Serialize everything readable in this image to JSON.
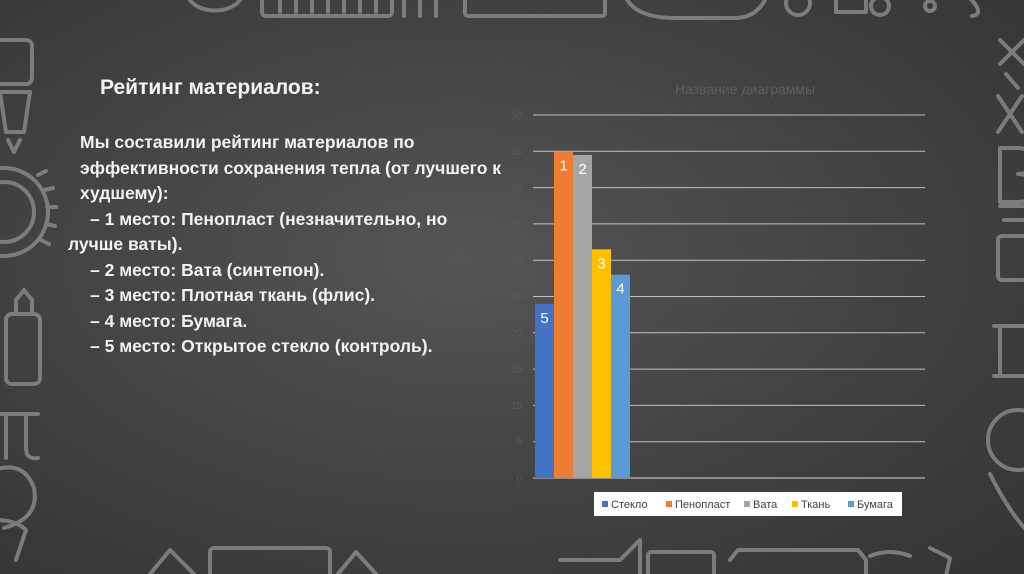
{
  "slide": {
    "heading": "Рейтинг материалов:",
    "intro": "Мы составили рейтинг материалов по эффективности сохранения тепла (от лучшего к худшему):",
    "items": [
      {
        "first": "– 1 место: Пенопласт (незначительно, но",
        "cont": "лучше ваты)."
      },
      {
        "first": "– 2 место: Вата (синтепон)."
      },
      {
        "first": "– 3 место: Плотная ткань (флис)."
      },
      {
        "first": "– 4 место: Бумага."
      },
      {
        "first": "– 5 место: Открытое стекло (контроль)."
      }
    ]
  },
  "chart_data": {
    "type": "bar",
    "title": "Название диаграммы",
    "ylim": [
      0,
      50
    ],
    "ticks": [
      0,
      5,
      10,
      15,
      20,
      25,
      30,
      35,
      40,
      45,
      50
    ],
    "grid": true,
    "legend_position": "bottom",
    "series": [
      {
        "name": "Стекло",
        "value": 24,
        "label": "5",
        "color": "#4472c4"
      },
      {
        "name": "Пенопласт",
        "value": 45,
        "label": "1",
        "color": "#ed7d31"
      },
      {
        "name": "Вата",
        "value": 44.5,
        "label": "2",
        "color": "#a5a5a5"
      },
      {
        "name": "Ткань",
        "value": 31.5,
        "label": "3",
        "color": "#ffc000"
      },
      {
        "name": "Бумага",
        "value": 28,
        "label": "4",
        "color": "#5b9bd5"
      }
    ]
  }
}
